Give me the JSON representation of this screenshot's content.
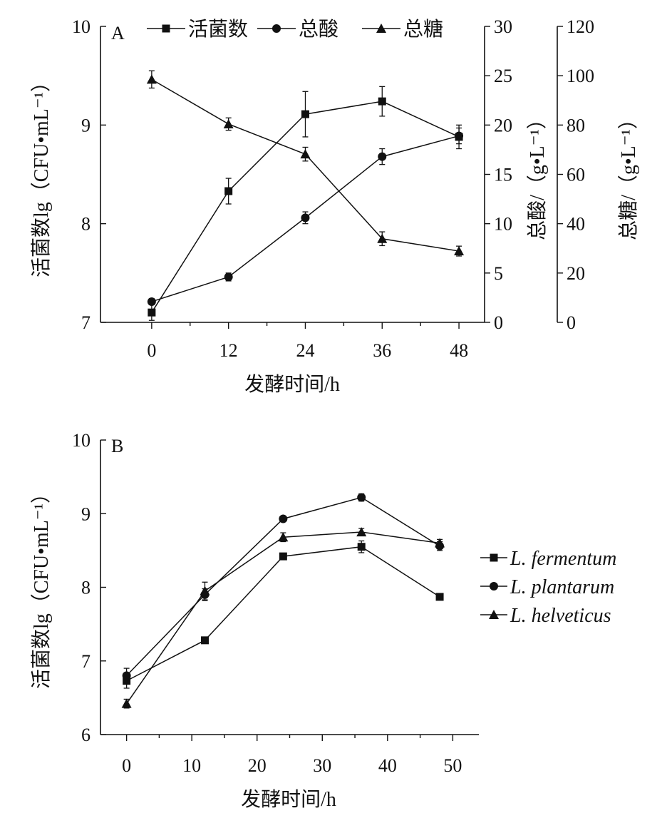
{
  "chart_data": [
    {
      "type": "line",
      "panel_label": "A",
      "title": "",
      "xlabel": "发酵时间/h",
      "x": [
        0,
        12,
        24,
        36,
        48
      ],
      "xlim": [
        -8,
        52
      ],
      "x_ticks": [
        0,
        12,
        24,
        36,
        48
      ],
      "y_axes": [
        {
          "id": "viable",
          "position": "left",
          "label": "活菌数lg（CFU•mL⁻¹）",
          "range": [
            7,
            10
          ],
          "ticks": [
            7,
            8,
            9,
            10
          ]
        },
        {
          "id": "acid",
          "position": "right",
          "label": "总酸/（g•L⁻¹）",
          "range": [
            0,
            30
          ],
          "ticks": [
            0,
            5,
            10,
            15,
            20,
            25,
            30
          ]
        },
        {
          "id": "sugar",
          "position": "right-outer",
          "label": "总糖/（g•L⁻¹）",
          "range": [
            0,
            120
          ],
          "ticks": [
            0,
            20,
            40,
            60,
            80,
            100,
            120
          ]
        }
      ],
      "legend": {
        "position": "top",
        "entries": [
          "活菌数",
          "总酸",
          "总糖"
        ]
      },
      "series": [
        {
          "name": "活菌数",
          "axis": "viable",
          "marker": "square",
          "values": [
            7.1,
            8.33,
            9.11,
            9.24,
            8.88
          ],
          "errors": [
            0.08,
            0.13,
            0.23,
            0.15,
            0.12
          ]
        },
        {
          "name": "总酸",
          "axis": "acid",
          "marker": "circle",
          "values": [
            2.1,
            4.6,
            10.6,
            16.8,
            18.9
          ],
          "errors": [
            0.3,
            0.4,
            0.6,
            0.8,
            0.8
          ]
        },
        {
          "name": "总糖",
          "axis": "sugar",
          "marker": "triangle",
          "values": [
            98.5,
            80.4,
            68.2,
            33.9,
            28.9
          ],
          "errors": [
            3.5,
            2.5,
            2.8,
            2.8,
            2.0
          ]
        }
      ]
    },
    {
      "type": "line",
      "panel_label": "B",
      "title": "",
      "xlabel": "发酵时间/h",
      "ylabel": "活菌数lg（CFU•mL⁻¹）",
      "x": [
        0,
        12,
        24,
        36,
        48
      ],
      "xlim": [
        -4,
        54
      ],
      "x_ticks": [
        0,
        10,
        20,
        30,
        40,
        50
      ],
      "ylim": [
        6,
        10
      ],
      "y_ticks": [
        6,
        7,
        8,
        9,
        10
      ],
      "legend": {
        "position": "right",
        "entries": [
          "L. fermentum",
          "L. plantarum",
          "L. helveticus"
        ]
      },
      "series": [
        {
          "name": "L. fermentum",
          "marker": "square",
          "values": [
            6.73,
            7.28,
            8.42,
            8.55,
            7.87
          ],
          "errors": [
            0.1,
            0.04,
            0.04,
            0.08,
            0.03
          ]
        },
        {
          "name": "L. plantarum",
          "marker": "circle",
          "values": [
            6.8,
            7.9,
            8.93,
            9.22,
            8.56
          ],
          "errors": [
            0.1,
            0.08,
            0.03,
            0.05,
            0.06
          ]
        },
        {
          "name": "L. helveticus",
          "marker": "triangle",
          "values": [
            6.42,
            7.95,
            8.68,
            8.75,
            8.6
          ],
          "errors": [
            0.06,
            0.12,
            0.06,
            0.05,
            0.05
          ]
        }
      ]
    }
  ]
}
